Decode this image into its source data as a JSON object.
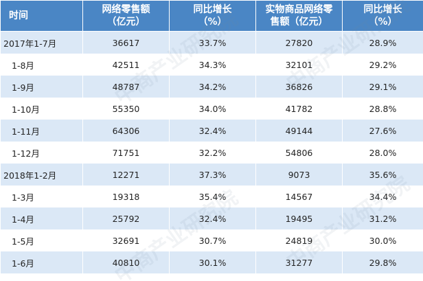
{
  "table": {
    "headers": [
      "时间",
      "网络零售额\n（亿元）",
      "同比增长\n（%）",
      "实物商品网络零\n售额（亿元）",
      "同比增长\n（%）"
    ],
    "rows": [
      [
        "2017年1-7月",
        "36617",
        "33.7%",
        "27820",
        "28.9%"
      ],
      [
        "1-8月",
        "42511",
        "34.3%",
        "32101",
        "29.2%"
      ],
      [
        "1-9月",
        "48787",
        "34.2%",
        "36826",
        "29.1%"
      ],
      [
        "1-10月",
        "55350",
        "34.0%",
        "41782",
        "28.8%"
      ],
      [
        "1-11月",
        "64306",
        "32.4%",
        "49144",
        "27.6%"
      ],
      [
        "1-12月",
        "71751",
        "32.2%",
        "54806",
        "28.0%"
      ],
      [
        "2018年1-2月",
        "12271",
        "37.3%",
        "9073",
        "35.6%"
      ],
      [
        "1-3月",
        "19318",
        "35.4%",
        "14567",
        "34.4%"
      ],
      [
        "1-4月",
        "25792",
        "32.4%",
        "19495",
        "31.2%"
      ],
      [
        "1-5月",
        "32691",
        "30.7%",
        "24819",
        "30.0%"
      ],
      [
        "1-6月",
        "40810",
        "30.1%",
        "31277",
        "29.8%"
      ]
    ]
  },
  "watermark": {
    "text": "中商产业研究院"
  },
  "colors": {
    "header_bg": "#4a86c5",
    "stripe_bg": "#dbe8f6"
  }
}
